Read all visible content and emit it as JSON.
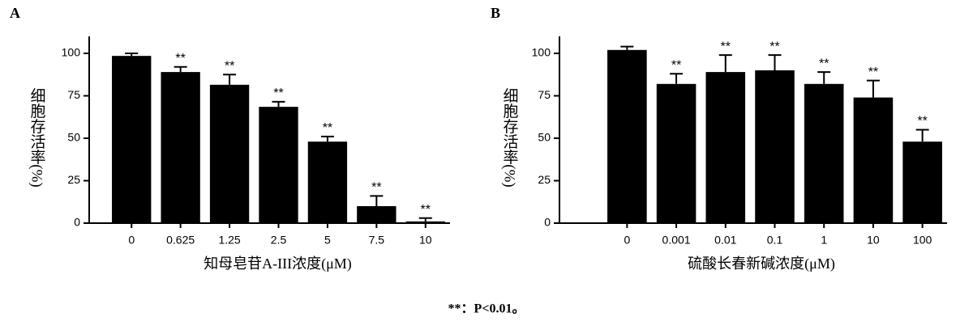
{
  "chart_data": [
    {
      "type": "bar",
      "panel_label": "A",
      "ylabel": "细胞存活率(%)",
      "xlabel": "知母皂苷A-III浓度(μM)",
      "categories": [
        "0",
        "0.625",
        "1.25",
        "2.5",
        "5",
        "7.5",
        "10"
      ],
      "values": [
        98.5,
        89,
        81.5,
        68.5,
        48,
        10,
        1
      ],
      "errors": [
        1.5,
        3,
        6,
        3,
        3,
        6,
        2
      ],
      "annotations": [
        null,
        "**",
        "**",
        "**",
        "**",
        "**",
        "**"
      ],
      "color": "#000000",
      "ylim": [
        0,
        110
      ],
      "yticks": [
        0,
        25,
        50,
        75,
        100
      ]
    },
    {
      "type": "bar",
      "panel_label": "B",
      "ylabel": "细胞存活率(%)",
      "xlabel": "硫酸长春新碱浓度(μM)",
      "categories": [
        "0",
        "0.001",
        "0.01",
        "0.1",
        "1",
        "10",
        "100"
      ],
      "values": [
        102,
        82,
        89,
        90,
        82,
        74,
        48
      ],
      "errors": [
        2,
        6,
        10,
        9,
        7,
        10,
        7
      ],
      "annotations": [
        null,
        "**",
        "**",
        "**",
        "**",
        "**",
        "**"
      ],
      "color": "#000000",
      "ylim": [
        0,
        110
      ],
      "yticks": [
        0,
        25,
        50,
        75,
        100
      ]
    }
  ],
  "footnote": "**：P<0.01。"
}
